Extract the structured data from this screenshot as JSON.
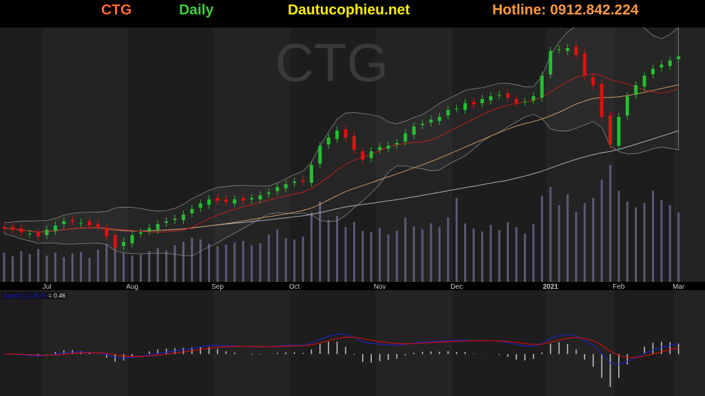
{
  "header": {
    "ticker": "CTG",
    "period": "Daily",
    "site": "Dautucophieu.net",
    "hotline": "Hotline: 0912.842.224"
  },
  "watermark": "CTG",
  "colors": {
    "up": "#22c030",
    "down": "#e01010",
    "ma_short": "#c02020",
    "ma_mid": "#d09a60",
    "ma_long": "#b0b0c0",
    "bollinger": "#888888",
    "volume": "#5a5a78",
    "macd": "#2020c0",
    "signal": "#d01010",
    "histogram": "#cccccc",
    "ticker": "#ff6a30",
    "period": "#3ccf3c",
    "site": "#ffee00",
    "hotline": "#ff9a40"
  },
  "chart_data": {
    "type": "candlestick",
    "ylim": [
      22.5,
      41
    ],
    "month_labels": [
      {
        "label": "Jul",
        "index": 5
      },
      {
        "label": "Aug",
        "index": 15
      },
      {
        "label": "Sep",
        "index": 25
      },
      {
        "label": "Oct",
        "index": 34
      },
      {
        "label": "Nov",
        "index": 44
      },
      {
        "label": "Dec",
        "index": 53
      },
      {
        "label": "2021",
        "index": 64
      },
      {
        "label": "Feb",
        "index": 72
      },
      {
        "label": "Mar",
        "index": 79
      }
    ],
    "close": [
      26.4,
      26.3,
      26.1,
      26.0,
      25.8,
      26.3,
      26.6,
      26.9,
      26.9,
      26.8,
      26.6,
      26.5,
      25.8,
      25.0,
      25.4,
      25.9,
      26.1,
      26.4,
      26.7,
      26.9,
      27.1,
      27.4,
      27.8,
      28.2,
      28.5,
      28.4,
      28.3,
      28.5,
      28.4,
      28.6,
      28.8,
      29.0,
      29.4,
      29.6,
      29.8,
      29.8,
      31.0,
      32.4,
      33.0,
      33.5,
      33.0,
      32.1,
      31.4,
      32.0,
      32.3,
      32.4,
      32.6,
      33.3,
      33.8,
      34.0,
      34.3,
      34.5,
      35.0,
      35.1,
      35.5,
      35.4,
      35.8,
      36.0,
      36.1,
      35.9,
      35.5,
      35.6,
      36.0,
      37.5,
      39.3,
      39.4,
      39.5,
      39.0,
      37.5,
      36.8,
      34.5,
      32.5,
      34.5,
      36.0,
      36.8,
      37.5,
      38.0,
      38.3,
      38.6,
      38.9
    ],
    "volume": [
      4,
      3.5,
      4.2,
      3.8,
      4.5,
      3.6,
      4.0,
      3.4,
      3.9,
      4.1,
      3.3,
      4.4,
      5.2,
      4.8,
      4.0,
      3.6,
      3.7,
      4.2,
      4.6,
      4.3,
      5.0,
      5.5,
      6.0,
      5.8,
      5.2,
      4.9,
      5.1,
      5.4,
      5.6,
      5.0,
      5.3,
      6.5,
      7.2,
      6.0,
      5.8,
      6.2,
      9.5,
      11,
      8.5,
      9.0,
      7.5,
      8.2,
      7.0,
      6.8,
      7.4,
      6.5,
      7.0,
      8.8,
      7.6,
      7.2,
      8.0,
      7.5,
      8.8,
      11.5,
      8.0,
      7.3,
      6.9,
      7.8,
      7.1,
      8.2,
      7.5,
      6.6,
      7.9,
      11.8,
      13,
      10.5,
      12,
      9.6,
      10.8,
      11.5,
      14,
      16,
      12.5,
      11,
      10.2,
      10.8,
      12.5,
      11.2,
      10.5,
      9.5
    ],
    "indicator": {
      "label": "Signal (12,26,9)",
      "value": "= 0.46"
    }
  }
}
